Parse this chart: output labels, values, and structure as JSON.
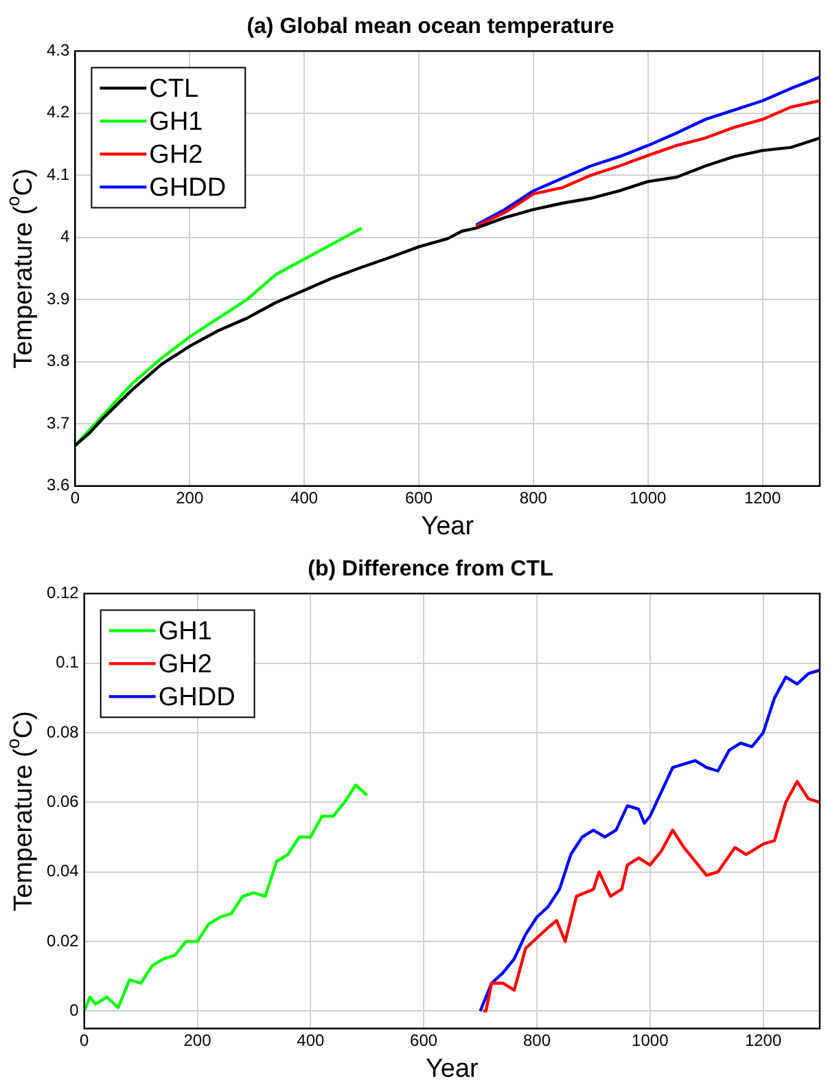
{
  "chart_data": [
    {
      "type": "line",
      "title": "(a) Global mean ocean temperature",
      "xlabel": "Year",
      "ylabel": "Temperature ($^{o}$C)",
      "xlim": [
        0,
        1300
      ],
      "xticks": [
        0,
        200,
        400,
        600,
        800,
        1000,
        1200
      ],
      "ylim": [
        3.6,
        4.3
      ],
      "yticks": [
        3.6,
        3.7,
        3.8,
        3.9,
        4,
        4.1,
        4.2,
        4.3
      ],
      "grid": true,
      "legend": "top left",
      "series": [
        {
          "name": "CTL",
          "color": "#000000",
          "x": [
            0,
            25,
            50,
            100,
            150,
            200,
            250,
            300,
            350,
            400,
            450,
            500,
            550,
            600,
            650,
            675,
            700,
            750,
            800,
            850,
            900,
            950,
            1000,
            1050,
            1100,
            1150,
            1200,
            1250,
            1300
          ],
          "values": [
            3.665,
            3.685,
            3.71,
            3.755,
            3.795,
            3.825,
            3.85,
            3.87,
            3.895,
            3.915,
            3.935,
            3.952,
            3.968,
            3.985,
            3.998,
            4.01,
            4.015,
            4.032,
            4.045,
            4.055,
            4.063,
            4.075,
            4.09,
            4.097,
            4.115,
            4.13,
            4.14,
            4.145,
            4.16
          ]
        },
        {
          "name": "GH1",
          "color": "#00ff00",
          "x": [
            0,
            50,
            100,
            150,
            200,
            250,
            300,
            350,
            400,
            450,
            500
          ],
          "values": [
            3.665,
            3.715,
            3.765,
            3.805,
            3.84,
            3.87,
            3.9,
            3.94,
            3.965,
            3.99,
            4.015
          ]
        },
        {
          "name": "GH2",
          "color": "#ff0000",
          "x": [
            700,
            750,
            800,
            850,
            900,
            950,
            1000,
            1050,
            1100,
            1150,
            1200,
            1250,
            1300
          ],
          "values": [
            4.018,
            4.04,
            4.07,
            4.08,
            4.1,
            4.115,
            4.132,
            4.148,
            4.16,
            4.177,
            4.19,
            4.21,
            4.22
          ]
        },
        {
          "name": "GHDD",
          "color": "#0000ff",
          "x": [
            700,
            750,
            800,
            850,
            900,
            950,
            1000,
            1050,
            1100,
            1150,
            1200,
            1250,
            1300
          ],
          "values": [
            4.02,
            4.045,
            4.075,
            4.095,
            4.115,
            4.13,
            4.148,
            4.168,
            4.19,
            4.205,
            4.22,
            4.24,
            4.258
          ]
        }
      ]
    },
    {
      "type": "line",
      "title": "(b) Difference from CTL",
      "xlabel": "Year",
      "ylabel": "Temperature ($^{o}$C)",
      "xlim": [
        0,
        1300
      ],
      "xticks": [
        0,
        200,
        400,
        600,
        800,
        1000,
        1200
      ],
      "ylim": [
        -0.005,
        0.12
      ],
      "yticks": [
        0,
        0.02,
        0.04,
        0.06,
        0.08,
        0.1,
        0.12
      ],
      "grid": true,
      "legend": "top left",
      "series": [
        {
          "name": "GH1",
          "color": "#00ff00",
          "x": [
            0,
            10,
            20,
            40,
            60,
            80,
            100,
            120,
            140,
            160,
            180,
            200,
            220,
            240,
            260,
            280,
            300,
            320,
            340,
            360,
            380,
            400,
            420,
            440,
            460,
            480,
            500
          ],
          "values": [
            0,
            0.004,
            0.002,
            0.004,
            0.001,
            0.009,
            0.008,
            0.013,
            0.015,
            0.016,
            0.02,
            0.02,
            0.025,
            0.027,
            0.028,
            0.033,
            0.034,
            0.033,
            0.043,
            0.045,
            0.05,
            0.05,
            0.056,
            0.056,
            0.06,
            0.065,
            0.062
          ]
        },
        {
          "name": "GH2",
          "color": "#ff0000",
          "x": [
            705,
            710,
            720,
            740,
            760,
            780,
            800,
            820,
            835,
            850,
            870,
            900,
            910,
            930,
            950,
            960,
            980,
            1000,
            1020,
            1040,
            1060,
            1080,
            1100,
            1120,
            1150,
            1170,
            1200,
            1220,
            1240,
            1260,
            1280,
            1300
          ],
          "values": [
            0,
            0,
            0.008,
            0.008,
            0.006,
            0.018,
            0.021,
            0.024,
            0.026,
            0.02,
            0.033,
            0.035,
            0.04,
            0.033,
            0.035,
            0.042,
            0.044,
            0.042,
            0.046,
            0.052,
            0.047,
            0.043,
            0.039,
            0.04,
            0.047,
            0.045,
            0.048,
            0.049,
            0.06,
            0.066,
            0.061,
            0.06
          ]
        },
        {
          "name": "GHDD",
          "color": "#0000ff",
          "x": [
            700,
            720,
            740,
            760,
            780,
            800,
            820,
            840,
            860,
            880,
            900,
            920,
            940,
            960,
            980,
            990,
            1000,
            1020,
            1040,
            1060,
            1080,
            1100,
            1120,
            1140,
            1160,
            1180,
            1200,
            1220,
            1240,
            1260,
            1280,
            1300
          ],
          "values": [
            0,
            0.008,
            0.011,
            0.015,
            0.022,
            0.027,
            0.03,
            0.035,
            0.045,
            0.05,
            0.052,
            0.05,
            0.052,
            0.059,
            0.058,
            0.054,
            0.056,
            0.063,
            0.07,
            0.071,
            0.072,
            0.07,
            0.069,
            0.075,
            0.077,
            0.076,
            0.08,
            0.09,
            0.096,
            0.094,
            0.097,
            0.098
          ]
        }
      ]
    }
  ]
}
